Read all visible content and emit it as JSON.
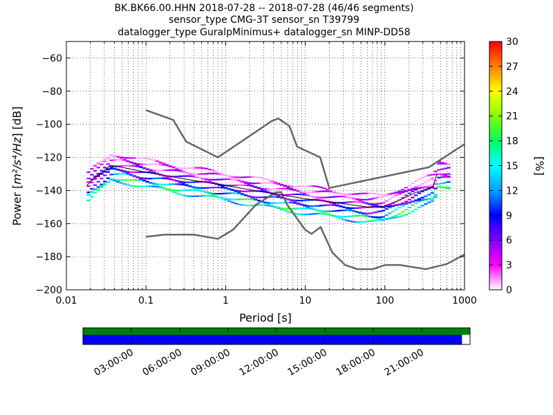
{
  "chart_data": {
    "type": "heatmap",
    "title_lines": [
      "BK.BK66.00.HHN   2018-07-28 -- 2018-07-28  (46/46 segments)",
      "sensor_type CMG-3T sensor_sn T39799",
      "datalogger_type GuralpMinimus+ datalogger_sn MINP-DD58"
    ],
    "xlabel": "Period [s]",
    "ylabel_prefix": "Power [",
    "ylabel_unit": "m²/s⁴/Hz",
    "ylabel_suffix": "] [dB]",
    "x_scale": "log",
    "xlim": [
      0.01,
      1000
    ],
    "ylim": [
      -200,
      -50
    ],
    "x_ticks": [
      {
        "v": 0.01,
        "label": "0.01"
      },
      {
        "v": 0.1,
        "label": "0.1"
      },
      {
        "v": 1,
        "label": "1"
      },
      {
        "v": 10,
        "label": "10"
      },
      {
        "v": 100,
        "label": "100"
      },
      {
        "v": 1000,
        "label": "1000"
      }
    ],
    "y_ticks": [
      -60,
      -80,
      -100,
      -120,
      -140,
      -160,
      -180,
      -200
    ],
    "grid": true,
    "colorbar": {
      "label": "[%]",
      "min": 0,
      "max": 30,
      "ticks": [
        0,
        3,
        6,
        9,
        12,
        15,
        18,
        21,
        24,
        27,
        30
      ],
      "colors": [
        "#ffffff",
        "#ff00ff",
        "#8000ff",
        "#0000ff",
        "#00a0ff",
        "#00ffff",
        "#00ff60",
        "#80ff00",
        "#ffff00",
        "#ff8000",
        "#ff0000"
      ]
    },
    "noise_model_high": {
      "x": [
        0.1,
        0.22,
        0.32,
        0.8,
        3.8,
        4.6,
        6.3,
        7.9,
        15.4,
        20,
        354.8,
        1000
      ],
      "y": [
        -91.5,
        -97.4,
        -110.5,
        -120,
        -98,
        -96.5,
        -101,
        -113.5,
        -120,
        -138.5,
        -126,
        -112
      ]
    },
    "noise_model_low": {
      "x": [
        0.1,
        0.17,
        0.4,
        0.8,
        1.24,
        2.4,
        4.3,
        5,
        6,
        10,
        12,
        15.6,
        21.9,
        31.6,
        45,
        70,
        101,
        154,
        328,
        600,
        1000
      ],
      "y": [
        -168,
        -166.7,
        -166.7,
        -169.2,
        -163.7,
        -148.6,
        -141.1,
        -141.1,
        -149,
        -163.8,
        -166.2,
        -162.1,
        -177.5,
        -185,
        -187.5,
        -187.5,
        -185,
        -185,
        -187.5,
        -184.4,
        -178.6
      ]
    },
    "mode_line": {
      "x": [
        0.018,
        0.022,
        0.03,
        0.035,
        0.05,
        0.1,
        0.3,
        1,
        3,
        10,
        30,
        60,
        90,
        150,
        250,
        400,
        450
      ],
      "y": [
        -137,
        -133,
        -128,
        -125,
        -126,
        -129,
        -133,
        -137,
        -141,
        -145,
        -148,
        -150,
        -150,
        -146,
        -141,
        -138,
        -130
      ]
    },
    "psd_tracks": [
      {
        "offset": -9,
        "pct": 14
      },
      {
        "offset": -7,
        "pct": 17
      },
      {
        "offset": -5,
        "pct": 12
      },
      {
        "offset": -3,
        "pct": 8
      },
      {
        "offset": -1,
        "pct": 7
      },
      {
        "offset": 1,
        "pct": 5
      },
      {
        "offset": 3,
        "pct": 4
      },
      {
        "offset": 5,
        "pct": 3
      },
      {
        "offset": 7,
        "pct": 2
      }
    ],
    "time_axis": {
      "labels": [
        "03:00:00",
        "06:00:00",
        "09:00:00",
        "12:00:00",
        "15:00:00",
        "18:00:00",
        "21:00:00"
      ],
      "hours": [
        3,
        6,
        9,
        12,
        15,
        18,
        21
      ],
      "range_hours": [
        0,
        24
      ],
      "coverage_hours": [
        0,
        23.5
      ],
      "data_color": "#0000ff",
      "segment_color": "#008000"
    }
  }
}
